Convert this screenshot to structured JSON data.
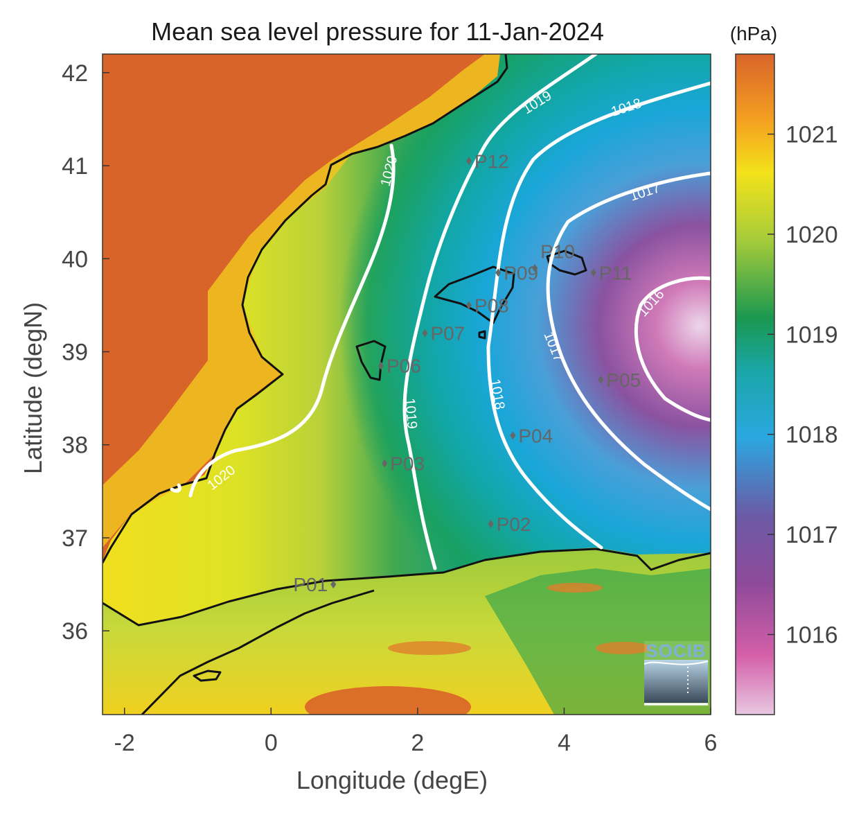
{
  "title": "Mean sea level pressure for 11-Jan-2024",
  "colorbar": {
    "unit": "(hPa)",
    "ticks": [
      "1021",
      "1020",
      "1019",
      "1018",
      "1017",
      "1016"
    ],
    "range": [
      1015.2,
      1021.8
    ],
    "colormap": [
      "#e8c8e2",
      "#d45fa8",
      "#8e4a9a",
      "#6c5aa6",
      "#2aa7e0",
      "#1aa6a8",
      "#1a9850",
      "#a8cc3a",
      "#f3e21a",
      "#f4a020",
      "#d9642a"
    ]
  },
  "axes": {
    "xlabel": "Longitude (degE)",
    "ylabel": "Latitude (degN)",
    "xticks": [
      "-2",
      "0",
      "2",
      "4",
      "6"
    ],
    "yticks": [
      "42",
      "41",
      "40",
      "39",
      "38",
      "37",
      "36"
    ],
    "xlim": [
      -2.3,
      6.0
    ],
    "ylim": [
      35.1,
      42.2
    ]
  },
  "contour_labels": [
    "1020",
    "1020",
    "1019",
    "1019",
    "1019",
    "1018",
    "1018",
    "1017",
    "1017",
    "1016"
  ],
  "points": [
    {
      "name": "P01",
      "lon": 0.85,
      "lat": 36.5
    },
    {
      "name": "P02",
      "lon": 3.0,
      "lat": 37.15
    },
    {
      "name": "P03",
      "lon": 1.55,
      "lat": 37.8
    },
    {
      "name": "P04",
      "lon": 3.3,
      "lat": 38.1
    },
    {
      "name": "P05",
      "lon": 4.5,
      "lat": 38.7
    },
    {
      "name": "P06",
      "lon": 1.5,
      "lat": 38.85
    },
    {
      "name": "P07",
      "lon": 2.1,
      "lat": 39.2
    },
    {
      "name": "P08",
      "lon": 2.7,
      "lat": 39.5
    },
    {
      "name": "P09",
      "lon": 3.1,
      "lat": 39.85
    },
    {
      "name": "P10",
      "lon": 3.6,
      "lat": 39.9
    },
    {
      "name": "P11",
      "lon": 4.4,
      "lat": 39.85
    },
    {
      "name": "P12",
      "lon": 2.7,
      "lat": 41.05
    }
  ],
  "logo": "SOCIB"
}
